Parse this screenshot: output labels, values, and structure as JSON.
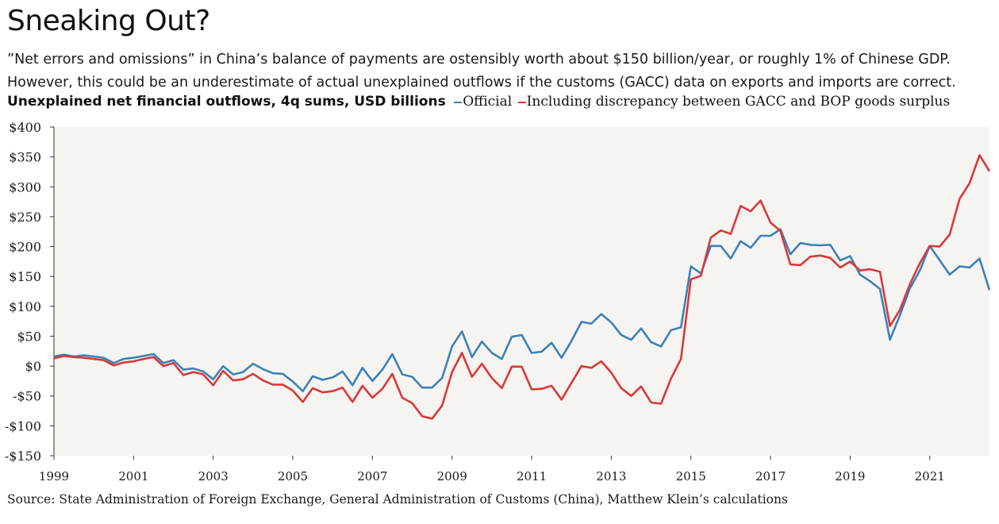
{
  "title": "Sneaking Out?",
  "subtitle_lines": [
    "”Net errors and omissions” in China’s balance of payments are ostensibly worth about $150 billion/year, or roughly 1% of Chinese GDP.",
    "However, this could be an underestimate of actual unexplained outflows if the customs (GACC) data on exports and imports are correct."
  ],
  "source": "Source: State Administration of Foreign Exchange, General Administration of Customs (China), Matthew Klein’s calculations",
  "chart_data": {
    "type": "line",
    "title": "Unexplained net financial outflows, 4q sums, USD billions",
    "xlabel": "",
    "ylabel": "",
    "ylim": [
      -150,
      400
    ],
    "xlim": [
      1999,
      2022.5
    ],
    "y_ticks": [
      400,
      350,
      300,
      250,
      200,
      150,
      100,
      50,
      0,
      -50,
      -100,
      -150
    ],
    "y_tick_labels": [
      "$400",
      "$350",
      "$300",
      "$250",
      "$200",
      "$150",
      "$100",
      "$50",
      "$0",
      "-$50",
      "-$100",
      "-$150"
    ],
    "x_ticks": [
      1999,
      2001,
      2003,
      2005,
      2007,
      2009,
      2011,
      2013,
      2015,
      2017,
      2019,
      2021
    ],
    "x_tick_labels": [
      "1999",
      "2001",
      "2003",
      "2005",
      "2007",
      "2009",
      "2011",
      "2013",
      "2015",
      "2017",
      "2019",
      "2021"
    ],
    "grid": false,
    "legend_position": "top, inline after chart title",
    "series": [
      {
        "name": "Official",
        "color": "#3b82b8",
        "x": [
          1999,
          1999.25,
          1999.5,
          1999.75,
          2000,
          2000.25,
          2000.5,
          2000.75,
          2001,
          2001.25,
          2001.5,
          2001.75,
          2002,
          2002.25,
          2002.5,
          2002.75,
          2003,
          2003.25,
          2003.5,
          2003.75,
          2004,
          2004.25,
          2004.5,
          2004.75,
          2005,
          2005.25,
          2005.5,
          2005.75,
          2006,
          2006.25,
          2006.5,
          2006.75,
          2007,
          2007.25,
          2007.5,
          2007.75,
          2008,
          2008.25,
          2008.5,
          2008.75,
          2009,
          2009.25,
          2009.5,
          2009.75,
          2010,
          2010.25,
          2010.5,
          2010.75,
          2011,
          2011.25,
          2011.5,
          2011.75,
          2012,
          2012.25,
          2012.5,
          2012.75,
          2013,
          2013.25,
          2013.5,
          2013.75,
          2014,
          2014.25,
          2014.5,
          2014.75,
          2015,
          2015.25,
          2015.5,
          2015.75,
          2016,
          2016.25,
          2016.5,
          2016.75,
          2017,
          2017.25,
          2017.5,
          2017.75,
          2018,
          2018.25,
          2018.5,
          2018.75,
          2019,
          2019.25,
          2019.5,
          2019.75,
          2020,
          2020.25,
          2020.5,
          2020.75,
          2021,
          2021.25,
          2021.5,
          2021.75,
          2022,
          2022.25,
          2022.5
        ],
        "values": [
          16,
          19,
          16,
          18,
          16,
          14,
          5,
          12,
          14,
          17,
          20,
          5,
          10,
          -6,
          -4,
          -9,
          -22,
          0,
          -14,
          -10,
          4,
          -5,
          -12,
          -13,
          -26,
          -42,
          -17,
          -23,
          -19,
          -9,
          -32,
          -3,
          -25,
          -6,
          20,
          -14,
          -18,
          -36,
          -36,
          -20,
          33,
          58,
          15,
          41,
          22,
          12,
          49,
          52,
          22,
          24,
          39,
          14,
          42,
          74,
          71,
          87,
          73,
          52,
          44,
          63,
          40,
          33,
          60,
          65,
          167,
          155,
          201,
          201,
          180,
          209,
          198,
          218,
          218,
          229,
          187,
          206,
          203,
          202,
          203,
          177,
          184,
          153,
          142,
          129,
          44,
          85,
          130,
          160,
          201,
          177,
          153,
          167,
          165,
          180,
          127
        ]
      },
      {
        "name": "Including discrepancy between GACC and BOP goods surplus",
        "color": "#d9383a",
        "x": [
          1999,
          1999.25,
          1999.5,
          1999.75,
          2000,
          2000.25,
          2000.5,
          2000.75,
          2001,
          2001.25,
          2001.5,
          2001.75,
          2002,
          2002.25,
          2002.5,
          2002.75,
          2003,
          2003.25,
          2003.5,
          2003.75,
          2004,
          2004.25,
          2004.5,
          2004.75,
          2005,
          2005.25,
          2005.5,
          2005.75,
          2006,
          2006.25,
          2006.5,
          2006.75,
          2007,
          2007.25,
          2007.5,
          2007.75,
          2008,
          2008.25,
          2008.5,
          2008.75,
          2009,
          2009.25,
          2009.5,
          2009.75,
          2010,
          2010.25,
          2010.5,
          2010.75,
          2011,
          2011.25,
          2011.5,
          2011.75,
          2012,
          2012.25,
          2012.5,
          2012.75,
          2013,
          2013.25,
          2013.5,
          2013.75,
          2014,
          2014.25,
          2014.5,
          2014.75,
          2015,
          2015.25,
          2015.5,
          2015.75,
          2016,
          2016.25,
          2016.5,
          2016.75,
          2017,
          2017.25,
          2017.5,
          2017.75,
          2018,
          2018.25,
          2018.5,
          2018.75,
          2019,
          2019.25,
          2019.5,
          2019.75,
          2020,
          2020.25,
          2020.5,
          2020.75,
          2021,
          2021.25,
          2021.5,
          2021.75,
          2022,
          2022.25,
          2022.5
        ],
        "values": [
          13,
          17,
          15,
          14,
          12,
          10,
          1,
          6,
          8,
          12,
          15,
          0,
          5,
          -15,
          -10,
          -14,
          -32,
          -8,
          -24,
          -22,
          -13,
          -24,
          -31,
          -31,
          -41,
          -60,
          -37,
          -44,
          -42,
          -36,
          -60,
          -33,
          -53,
          -38,
          -13,
          -53,
          -62,
          -84,
          -88,
          -66,
          -10,
          22,
          -18,
          4,
          -20,
          -37,
          -1,
          -1,
          -39,
          -38,
          -33,
          -56,
          -28,
          0,
          -3,
          8,
          -11,
          -37,
          -50,
          -34,
          -61,
          -63,
          -21,
          12,
          145,
          151,
          215,
          227,
          221,
          268,
          259,
          277,
          240,
          226,
          170,
          169,
          183,
          185,
          181,
          165,
          175,
          160,
          162,
          158,
          67,
          94,
          137,
          172,
          201,
          200,
          220,
          280,
          306,
          353,
          326
        ]
      }
    ]
  }
}
